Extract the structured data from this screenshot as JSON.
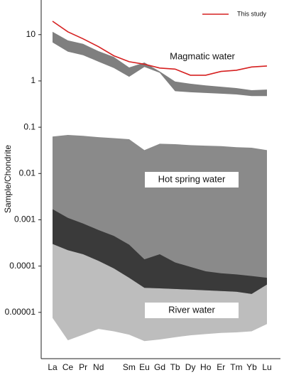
{
  "chart_data": {
    "type": "line",
    "y_label": "Sample/Chondrite",
    "log_scale": true,
    "ylim": [
      1e-06,
      56
    ],
    "yticks": [
      10,
      1,
      0.1,
      0.01,
      0.001,
      0.0001,
      1e-05
    ],
    "categories": [
      "La",
      "Ce",
      "Pr",
      "Nd",
      null,
      "Sm",
      "Eu",
      "Gd",
      "Tb",
      "Dy",
      "Ho",
      "Er",
      "Tm",
      "Yb",
      "Lu"
    ],
    "series": [
      {
        "name": "This study",
        "color": "#d62020",
        "values": [
          19.5,
          11.5,
          8.1,
          5.5,
          3.5,
          2.6,
          2.3,
          1.9,
          1.8,
          1.33,
          1.33,
          1.6,
          1.7,
          2.0,
          2.1
        ]
      }
    ],
    "bands": [
      {
        "label": "Magmatic water",
        "color": "#7f7f7f",
        "upper": [
          11.5,
          7.5,
          6.3,
          4.4,
          3.3,
          1.95,
          2.5,
          1.6,
          0.97,
          0.87,
          0.8,
          0.75,
          0.7,
          0.63,
          0.65
        ],
        "lower": [
          6.8,
          4.3,
          3.6,
          2.6,
          1.9,
          1.23,
          2.0,
          1.5,
          0.6,
          0.57,
          0.55,
          0.53,
          0.51,
          0.47,
          0.47
        ]
      },
      {
        "label": "Hot spring water",
        "color": "#8a8a8a",
        "upper": [
          0.063,
          0.068,
          0.065,
          0.061,
          0.058,
          0.055,
          0.032,
          0.044,
          0.043,
          0.041,
          0.04,
          0.039,
          0.037,
          0.036,
          0.032
        ],
        "lower": [
          0.0003,
          0.00022,
          0.00018,
          0.00013,
          8.9e-05,
          5.6e-05,
          3.4e-05,
          3.3e-05,
          3.2e-05,
          3.1e-05,
          3e-05,
          2.9e-05,
          2.8e-05,
          2.5e-05,
          4e-05
        ]
      },
      {
        "label": "River water",
        "color": "#bdbdbd",
        "upper": [
          0.0017,
          0.0011,
          0.00083,
          0.0006,
          0.00045,
          0.00029,
          0.00014,
          0.00018,
          0.00012,
          9.6e-05,
          7.7e-05,
          7e-05,
          6.6e-05,
          6.1e-05,
          5.6e-05
        ],
        "lower": [
          7.6e-06,
          2.5e-06,
          3.3e-06,
          4.4e-06,
          3.9e-06,
          3.3e-06,
          2.4e-06,
          2.6e-06,
          2.9e-06,
          3.2e-06,
          3.4e-06,
          3.6e-06,
          3.7e-06,
          3.9e-06,
          5.6e-06
        ]
      }
    ],
    "overlap_color": "#3a3a3a",
    "legend": "upper right"
  }
}
